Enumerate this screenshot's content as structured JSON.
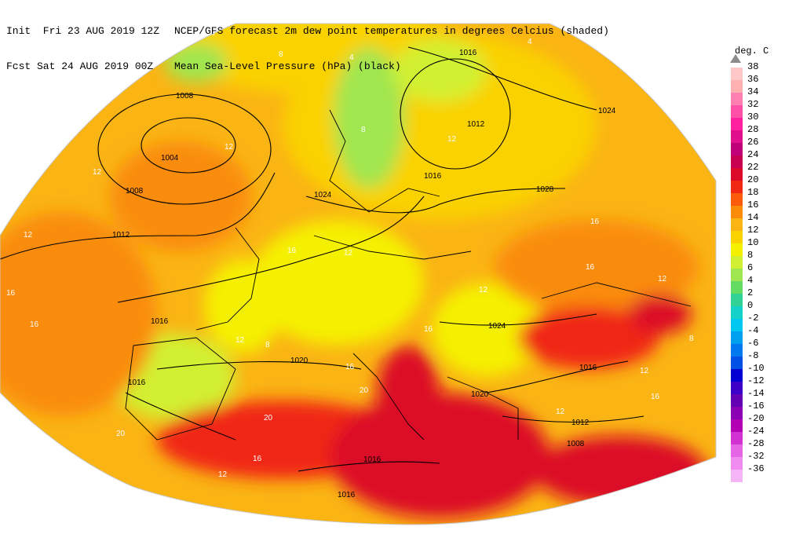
{
  "header": {
    "init_line": "Init  Fri 23 AUG 2019 12Z",
    "fcst_line": "Fcst Sat 24 AUG 2019 00Z",
    "title_line1": "NCEP/GFS forecast 2m dew point temperatures in degrees Celcius (shaded)",
    "title_line2": "Mean Sea-Level Pressure (hPa) (black)"
  },
  "legend": {
    "title": "deg. C",
    "entries": [
      {
        "label": "38",
        "color": "#ffc8c8"
      },
      {
        "label": "36",
        "color": "#ffb0b0"
      },
      {
        "label": "34",
        "color": "#ff80b0"
      },
      {
        "label": "32",
        "color": "#ff50a8"
      },
      {
        "label": "30",
        "color": "#ff20a0"
      },
      {
        "label": "28",
        "color": "#e0108c"
      },
      {
        "label": "26",
        "color": "#c00078"
      },
      {
        "label": "24",
        "color": "#c80050"
      },
      {
        "label": "22",
        "color": "#dc0a28"
      },
      {
        "label": "20",
        "color": "#f02814"
      },
      {
        "label": "18",
        "color": "#fa5a0a"
      },
      {
        "label": "16",
        "color": "#fa8c0a"
      },
      {
        "label": "14",
        "color": "#fab414"
      },
      {
        "label": "12",
        "color": "#fad200"
      },
      {
        "label": "10",
        "color": "#f5f000"
      },
      {
        "label": "8",
        "color": "#d2f032"
      },
      {
        "label": "6",
        "color": "#a0e650"
      },
      {
        "label": "4",
        "color": "#64dc64"
      },
      {
        "label": "2",
        "color": "#32d296"
      },
      {
        "label": "0",
        "color": "#14d2c8"
      },
      {
        "label": "-2",
        "color": "#00c8f0"
      },
      {
        "label": "-4",
        "color": "#00a0f0"
      },
      {
        "label": "-6",
        "color": "#0078f0"
      },
      {
        "label": "-8",
        "color": "#0050e6"
      },
      {
        "label": "-10",
        "color": "#0000d2"
      },
      {
        "label": "-12",
        "color": "#3c00c8"
      },
      {
        "label": "-14",
        "color": "#6400b4"
      },
      {
        "label": "-16",
        "color": "#8c00b4"
      },
      {
        "label": "-20",
        "color": "#b400b4"
      },
      {
        "label": "-24",
        "color": "#d232d2"
      },
      {
        "label": "-28",
        "color": "#e664e6"
      },
      {
        "label": "-32",
        "color": "#f08cf0"
      },
      {
        "label": "-36",
        "color": "#f5b4f5"
      }
    ]
  },
  "isobar_labels": [
    {
      "text": "1008"
    },
    {
      "text": "1004"
    },
    {
      "text": "1008"
    },
    {
      "text": "1012"
    },
    {
      "text": "1016"
    },
    {
      "text": "1016"
    },
    {
      "text": "1012"
    },
    {
      "text": "1024"
    },
    {
      "text": "1016"
    },
    {
      "text": "1024"
    },
    {
      "text": "1028"
    },
    {
      "text": "1024"
    },
    {
      "text": "1020"
    },
    {
      "text": "1016"
    },
    {
      "text": "1020"
    },
    {
      "text": "1016"
    },
    {
      "text": "1016"
    },
    {
      "text": "1012"
    },
    {
      "text": "1008"
    },
    {
      "text": "1016"
    }
  ],
  "dew_labels": [
    {
      "text": "4"
    },
    {
      "text": "8"
    },
    {
      "text": "4"
    },
    {
      "text": "4"
    },
    {
      "text": "8"
    },
    {
      "text": "12"
    },
    {
      "text": "12"
    },
    {
      "text": "12"
    },
    {
      "text": "12"
    },
    {
      "text": "16"
    },
    {
      "text": "16"
    },
    {
      "text": "16"
    },
    {
      "text": "12"
    },
    {
      "text": "12"
    },
    {
      "text": "16"
    },
    {
      "text": "8"
    },
    {
      "text": "12"
    },
    {
      "text": "16"
    },
    {
      "text": "20"
    },
    {
      "text": "20"
    },
    {
      "text": "16"
    },
    {
      "text": "12"
    },
    {
      "text": "16"
    },
    {
      "text": "16"
    },
    {
      "text": "12"
    },
    {
      "text": "8"
    },
    {
      "text": "12"
    },
    {
      "text": "20"
    },
    {
      "text": "16"
    },
    {
      "text": "12"
    }
  ]
}
